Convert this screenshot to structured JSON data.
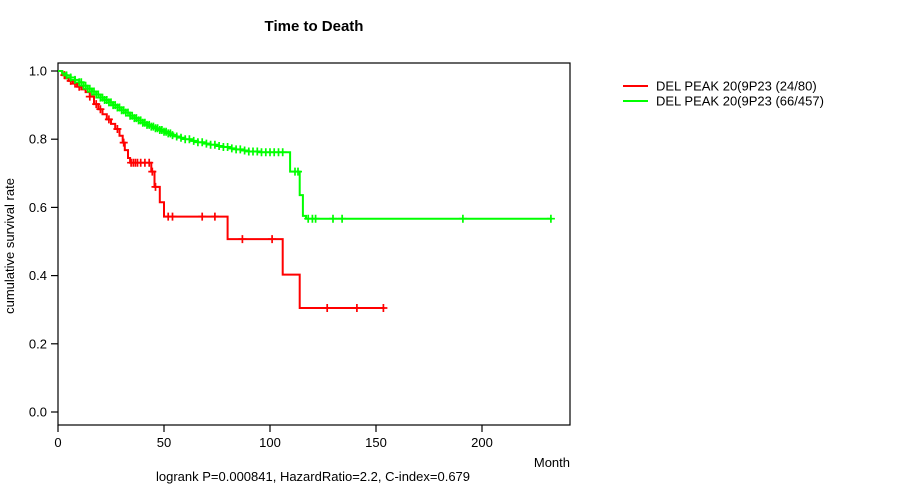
{
  "chart_data": {
    "type": "line",
    "subtype": "kaplan-meier-step",
    "title": "Time to Death",
    "xlabel": "Month",
    "ylabel": "cumulative survival rate",
    "footer": "logrank P=0.000841, HazardRatio=2.2, C-index=0.679",
    "xtick_labels": [
      "0",
      "50",
      "100",
      "150",
      "200"
    ],
    "xticks": [
      0,
      50,
      100,
      150,
      200
    ],
    "ytick_labels": [
      "0.0",
      "0.2",
      "0.4",
      "0.6",
      "0.8",
      "1.0"
    ],
    "yticks": [
      0.0,
      0.2,
      0.4,
      0.6,
      0.8,
      1.0
    ],
    "xlim": [
      0,
      241
    ],
    "ylim": [
      0,
      1
    ],
    "grid": false,
    "legend_position": "right-outside",
    "axis_color": "#000000",
    "background_color": "#ffffff",
    "series": [
      {
        "name": "DEL PEAK 20(9P23 (24/80)",
        "color": "#ff0000",
        "events": "24/80",
        "points": [
          [
            0,
            1.0
          ],
          [
            2,
            0.988
          ],
          [
            3.5,
            0.979
          ],
          [
            5,
            0.971
          ],
          [
            7,
            0.963
          ],
          [
            9,
            0.954
          ],
          [
            11,
            0.946
          ],
          [
            13,
            0.938
          ],
          [
            15,
            0.925
          ],
          [
            17,
            0.903
          ],
          [
            19,
            0.888
          ],
          [
            21,
            0.873
          ],
          [
            23,
            0.858
          ],
          [
            25,
            0.845
          ],
          [
            27,
            0.83
          ],
          [
            29,
            0.81
          ],
          [
            30.5,
            0.79
          ],
          [
            31.5,
            0.768
          ],
          [
            33,
            0.745
          ],
          [
            34,
            0.731
          ],
          [
            44,
            0.705
          ],
          [
            45.5,
            0.66
          ],
          [
            48,
            0.615
          ],
          [
            50,
            0.573
          ],
          [
            80,
            0.507
          ],
          [
            106,
            0.403
          ],
          [
            114,
            0.305
          ],
          [
            154,
            0.305
          ]
        ],
        "censor_times": [
          3,
          6,
          8,
          10,
          15,
          18,
          20,
          24,
          28,
          31,
          34.5,
          35.5,
          36.5,
          37.5,
          39,
          41,
          43,
          44.5,
          46,
          52,
          54,
          68,
          74,
          87,
          101,
          127,
          141,
          153.5
        ]
      },
      {
        "name": "DEL PEAK 20(9P23 (66/457)",
        "color": "#00ff00",
        "events": "66/457",
        "points": [
          [
            0,
            1.0
          ],
          [
            2,
            0.993
          ],
          [
            4,
            0.987
          ],
          [
            6,
            0.981
          ],
          [
            8,
            0.974
          ],
          [
            10,
            0.967
          ],
          [
            12,
            0.957
          ],
          [
            14,
            0.948
          ],
          [
            16,
            0.94
          ],
          [
            18,
            0.931
          ],
          [
            20,
            0.922
          ],
          [
            22,
            0.915
          ],
          [
            24,
            0.908
          ],
          [
            26,
            0.9
          ],
          [
            28,
            0.893
          ],
          [
            30,
            0.885
          ],
          [
            32,
            0.878
          ],
          [
            34,
            0.869
          ],
          [
            36,
            0.862
          ],
          [
            38,
            0.855
          ],
          [
            40,
            0.848
          ],
          [
            42,
            0.842
          ],
          [
            44,
            0.837
          ],
          [
            46,
            0.832
          ],
          [
            48,
            0.827
          ],
          [
            50,
            0.822
          ],
          [
            52,
            0.817
          ],
          [
            54,
            0.812
          ],
          [
            56,
            0.808
          ],
          [
            58,
            0.804
          ],
          [
            60,
            0.8
          ],
          [
            63,
            0.795
          ],
          [
            66,
            0.791
          ],
          [
            69,
            0.787
          ],
          [
            72,
            0.784
          ],
          [
            75,
            0.78
          ],
          [
            78,
            0.777
          ],
          [
            81,
            0.773
          ],
          [
            84,
            0.77
          ],
          [
            87,
            0.767
          ],
          [
            90,
            0.764
          ],
          [
            95,
            0.762
          ],
          [
            109.5,
            0.705
          ],
          [
            114,
            0.636
          ],
          [
            115.5,
            0.575
          ],
          [
            117,
            0.567
          ],
          [
            233,
            0.567
          ]
        ],
        "censor_times": [
          4,
          6,
          8,
          10,
          11,
          12,
          13,
          14,
          15,
          16,
          17,
          18,
          19,
          20,
          21,
          22,
          23,
          24,
          25,
          26,
          27,
          28,
          29,
          30,
          31,
          32,
          33,
          34,
          35,
          36,
          37,
          38,
          39,
          40,
          41,
          42,
          43,
          44,
          45,
          46,
          47,
          48,
          49,
          50,
          51,
          52,
          53,
          54,
          56,
          58,
          60,
          62,
          64,
          66,
          68,
          70,
          72,
          74,
          76,
          78,
          80,
          82,
          84,
          86,
          88,
          90,
          92,
          94,
          96,
          98,
          100,
          102,
          104,
          106,
          111.8,
          113.2,
          118,
          120,
          121.5,
          129.7,
          134,
          191,
          232.5
        ]
      }
    ]
  }
}
